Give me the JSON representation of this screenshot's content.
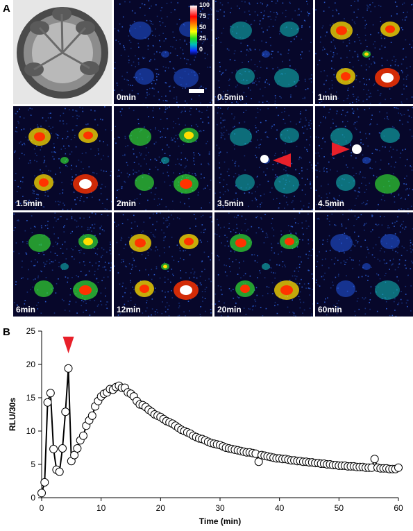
{
  "panels": {
    "a_label": "A",
    "b_label": "B"
  },
  "colorbar": {
    "ticks": [
      "100",
      "75",
      "50",
      "25",
      "0"
    ]
  },
  "tiles": [
    {
      "label": "",
      "kind": "photo",
      "level": 0
    },
    {
      "label": "0min",
      "kind": "lum",
      "level": 0.05
    },
    {
      "label": "0.5min",
      "kind": "lum",
      "level": 0.15
    },
    {
      "label": "1min",
      "kind": "lum",
      "level": 0.55
    },
    {
      "label": "1.5min",
      "kind": "lum",
      "level": 0.5
    },
    {
      "label": "2min",
      "kind": "lum",
      "level": 0.3
    },
    {
      "label": "3.5min",
      "kind": "lum",
      "level": 0.15
    },
    {
      "label": "4.5min",
      "kind": "lum",
      "level": 0.2
    },
    {
      "label": "6min",
      "kind": "lum",
      "level": 0.3
    },
    {
      "label": "12min",
      "kind": "lum",
      "level": 0.55
    },
    {
      "label": "20min",
      "kind": "lum",
      "level": 0.4
    },
    {
      "label": "60min",
      "kind": "lum",
      "level": 0.1
    }
  ],
  "chart_data": {
    "type": "line",
    "xlabel": "Time (min)",
    "ylabel": "RLU/30s",
    "xlim": [
      0,
      60
    ],
    "ylim": [
      0,
      25
    ],
    "xticks": [
      0,
      10,
      20,
      30,
      40,
      50,
      60
    ],
    "yticks": [
      0,
      5,
      10,
      15,
      20,
      25
    ],
    "grid": false,
    "annotation_x": 4.5,
    "series": [
      {
        "x": [
          0,
          0.5,
          1,
          1.5,
          2,
          2.5,
          3,
          3.5,
          4,
          4.5,
          5,
          5.5,
          6,
          6.5,
          7,
          7.5,
          8,
          8.5,
          9,
          9.5,
          10,
          10.5,
          11,
          11.5,
          12,
          12.5,
          13,
          13.5,
          14,
          14.5,
          15,
          15.5,
          16,
          16.5,
          17,
          17.5,
          18,
          18.5,
          19,
          19.5,
          20,
          20.5,
          21,
          21.5,
          22,
          22.5,
          23,
          23.5,
          24,
          24.5,
          25,
          25.5,
          26,
          26.5,
          27,
          27.5,
          28,
          28.5,
          29,
          29.5,
          30,
          30.5,
          31,
          31.5,
          32,
          32.5,
          33,
          33.5,
          34,
          34.5,
          35,
          35.5,
          36,
          36.5,
          37,
          37.5,
          38,
          38.5,
          39,
          39.5,
          40,
          40.5,
          41,
          41.5,
          42,
          42.5,
          43,
          43.5,
          44,
          44.5,
          45,
          45.5,
          46,
          46.5,
          47,
          47.5,
          48,
          48.5,
          49,
          49.5,
          50,
          50.5,
          51,
          51.5,
          52,
          52.5,
          53,
          53.5,
          54,
          54.5,
          55,
          55.5,
          56,
          56.5,
          57,
          57.5,
          58,
          58.5,
          59,
          59.5,
          60
        ],
        "y": [
          0.7,
          2.3,
          14.3,
          15.7,
          7.3,
          4.2,
          3.9,
          7.4,
          12.9,
          19.4,
          5.5,
          6.4,
          7.4,
          8.6,
          9.3,
          10.8,
          11.6,
          12.3,
          13.7,
          14.5,
          15.2,
          15.6,
          15.8,
          16.3,
          16.2,
          16.6,
          16.8,
          16.5,
          16.5,
          15.8,
          15.6,
          15.2,
          14.5,
          14.0,
          13.9,
          13.6,
          13.2,
          12.9,
          12.5,
          12.3,
          12.1,
          11.8,
          11.5,
          11.3,
          11.1,
          10.8,
          10.5,
          10.2,
          10.0,
          9.8,
          9.6,
          9.3,
          9.1,
          8.9,
          8.8,
          8.6,
          8.4,
          8.2,
          8.1,
          8.0,
          7.9,
          7.7,
          7.5,
          7.4,
          7.3,
          7.2,
          7.1,
          7.0,
          6.9,
          6.8,
          6.8,
          6.7,
          6.6,
          5.4,
          6.4,
          6.3,
          6.2,
          6.1,
          6.0,
          5.9,
          5.9,
          5.8,
          5.8,
          5.7,
          5.6,
          5.6,
          5.5,
          5.5,
          5.4,
          5.4,
          5.3,
          5.3,
          5.2,
          5.2,
          5.1,
          5.1,
          5.0,
          5.0,
          4.9,
          4.9,
          4.8,
          4.8,
          4.8,
          4.7,
          4.7,
          4.7,
          4.6,
          4.6,
          4.6,
          4.5,
          4.5,
          4.5,
          5.8,
          4.5,
          4.4,
          4.4,
          4.4,
          4.3,
          4.3,
          4.3,
          4.5
        ]
      }
    ]
  }
}
